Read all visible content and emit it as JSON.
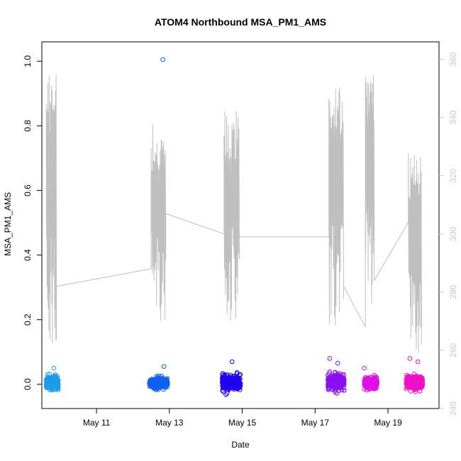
{
  "chart_data": {
    "type": "scatter",
    "title": "ATOM4 Northbound MSA_PM1_AMS",
    "xlabel": "Date",
    "ylabel": "MSA_PM1_AMS",
    "y2label": "",
    "x_ticks": [
      "May 11",
      "May 13",
      "May 15",
      "May 17",
      "May 19"
    ],
    "x_tick_days": [
      11,
      13,
      15,
      17,
      19
    ],
    "xlim_days": [
      9.5,
      20.4
    ],
    "ylim": [
      -0.075,
      1.06
    ],
    "y_ticks": [
      "0.0",
      "0.2",
      "0.4",
      "0.6",
      "0.8",
      "1.0"
    ],
    "y2lim": [
      240,
      366
    ],
    "y2_ticks": [
      "240",
      "260",
      "280",
      "300",
      "320",
      "340",
      "360"
    ],
    "grid": false,
    "colors": {
      "line_series": "#bfbfbf",
      "right_axis": "#c8c8c8",
      "groups": [
        "#1e9be8",
        "#1060f0",
        "#2000f0",
        "#8a10f0",
        "#e010e8",
        "#f010c8"
      ]
    },
    "scatter_groups": [
      {
        "day_start": 9.62,
        "day_end": 9.95,
        "center": 0.005,
        "spread": 0.022,
        "color": "#1e9be8"
      },
      {
        "day_start": 12.45,
        "day_end": 12.95,
        "center": 0.004,
        "spread": 0.018,
        "color": "#1060f0"
      },
      {
        "day_start": 14.45,
        "day_end": 14.95,
        "center": 0.006,
        "spread": 0.024,
        "color": "#2000f0"
      },
      {
        "day_start": 17.35,
        "day_end": 17.8,
        "center": 0.007,
        "spread": 0.025,
        "color": "#8a10f0"
      },
      {
        "day_start": 18.35,
        "day_end": 18.7,
        "center": 0.004,
        "spread": 0.018,
        "color": "#e010e8"
      },
      {
        "day_start": 19.5,
        "day_end": 19.95,
        "center": 0.006,
        "spread": 0.022,
        "color": "#f010c8"
      }
    ],
    "outliers": [
      {
        "day": 12.82,
        "y": 1.005,
        "color": "#1060f0"
      },
      {
        "day": 9.83,
        "y": 0.05,
        "color": "#1e9be8"
      },
      {
        "day": 12.85,
        "y": 0.055,
        "color": "#1060f0"
      },
      {
        "day": 14.72,
        "y": 0.07,
        "color": "#2000f0"
      },
      {
        "day": 17.4,
        "y": 0.08,
        "color": "#8a10f0"
      },
      {
        "day": 17.62,
        "y": 0.065,
        "color": "#8a10f0"
      },
      {
        "day": 18.35,
        "y": 0.05,
        "color": "#e010e8"
      },
      {
        "day": 19.6,
        "y": 0.08,
        "color": "#f010c8"
      },
      {
        "day": 19.82,
        "y": 0.07,
        "color": "#f010c8"
      },
      {
        "day": 14.55,
        "y": -0.032,
        "color": "#2000f0"
      }
    ],
    "line_series": {
      "axis": "right",
      "segments": [
        {
          "day_start": 9.62,
          "day_end": 9.9,
          "min": 258,
          "max": 358,
          "after": 282
        },
        {
          "day_start": 12.5,
          "day_end": 12.9,
          "min": 270,
          "max": 339,
          "after": 307
        },
        {
          "day_start": 14.5,
          "day_end": 14.92,
          "min": 269,
          "max": 344,
          "after": 299
        },
        {
          "day_start": 17.38,
          "day_end": 17.78,
          "min": 267,
          "max": 355,
          "after": 282
        },
        {
          "day_start": 18.38,
          "day_end": 18.62,
          "min": 276,
          "max": 355,
          "after": 284
        },
        {
          "day_start": 19.56,
          "day_end": 19.92,
          "min": 254,
          "max": 330,
          "after": 262
        }
      ],
      "connectors": [
        {
          "from_day": 9.9,
          "from": 282,
          "to_day": 12.5,
          "to": 288
        },
        {
          "from_day": 12.9,
          "from": 307,
          "to_day": 14.5,
          "to": 300
        },
        {
          "from_day": 14.92,
          "from": 299,
          "to_day": 17.38,
          "to": 299
        },
        {
          "from_day": 17.78,
          "from": 282,
          "to_day": 18.38,
          "to": 268
        },
        {
          "from_day": 18.62,
          "from": 284,
          "to_day": 19.56,
          "to": 304
        }
      ]
    }
  }
}
